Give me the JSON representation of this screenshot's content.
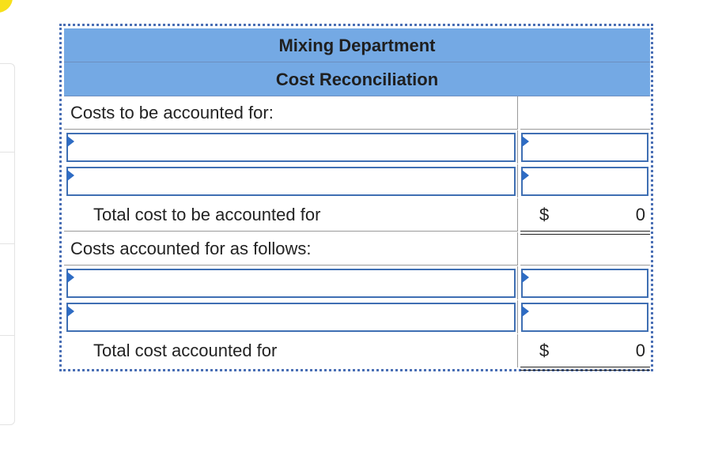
{
  "header": {
    "title": "Mixing Department",
    "subtitle": "Cost Reconciliation"
  },
  "rows": [
    {
      "label": "Costs to be accounted for:",
      "value": ""
    },
    {
      "label": "",
      "value": ""
    },
    {
      "label": "",
      "value": ""
    },
    {
      "label": "Total cost to be accounted for",
      "currency": "$",
      "value": "0"
    },
    {
      "label": "Costs accounted for as follows:",
      "value": ""
    },
    {
      "label": "",
      "value": ""
    },
    {
      "label": "",
      "value": ""
    },
    {
      "label": "Total cost accounted for",
      "currency": "$",
      "value": "0"
    }
  ],
  "colors": {
    "header_bg": "#74a9e4",
    "input_border": "#3f6fb3",
    "dropdown_marker": "#2e6cc4",
    "corner_badge": "#f7e01a"
  }
}
